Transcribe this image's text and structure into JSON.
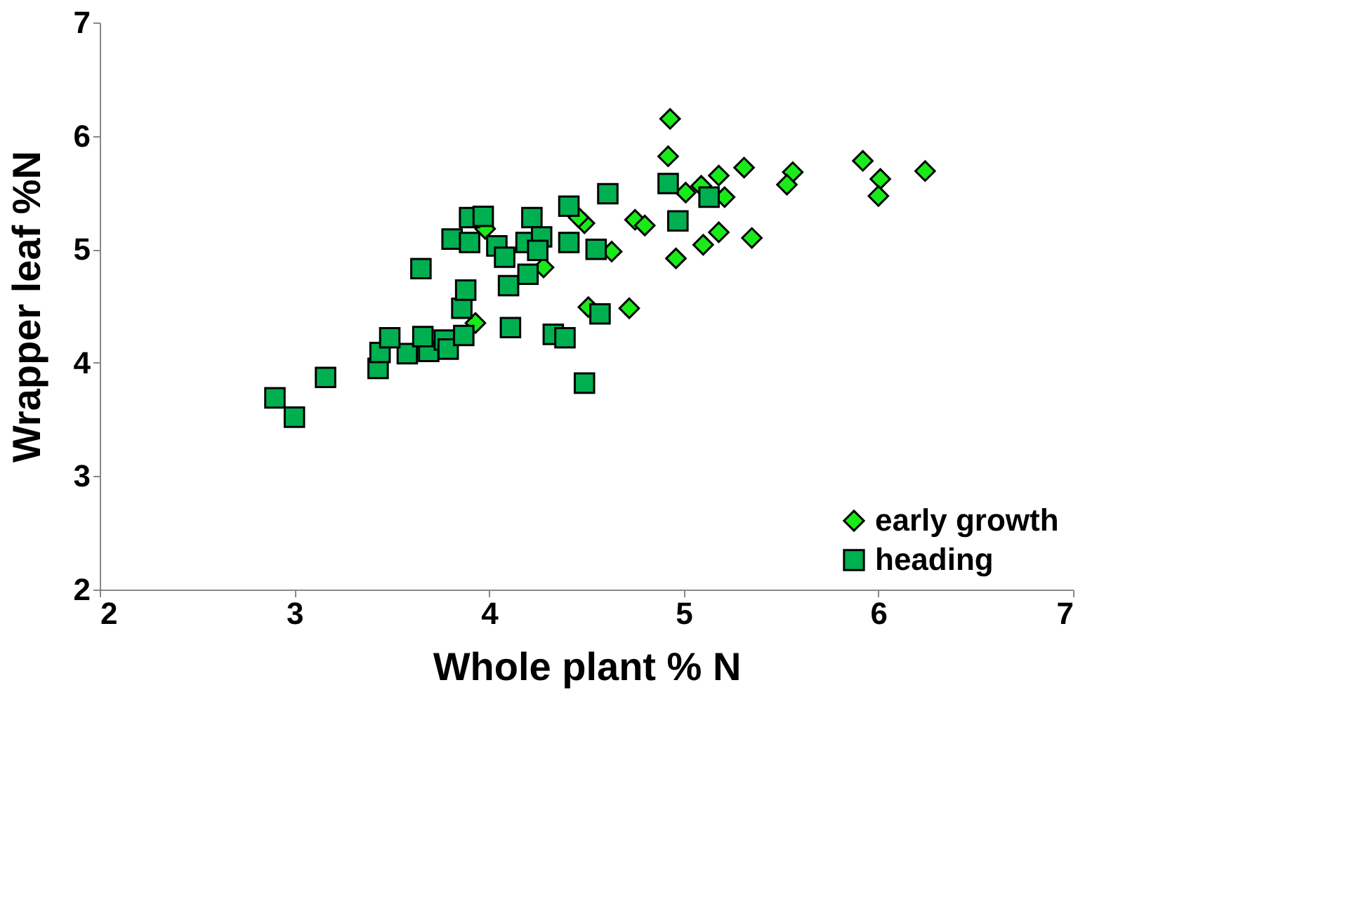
{
  "chart_data": {
    "type": "scatter",
    "xlabel": "Whole plant % N",
    "ylabel": "Wrapper leaf %N",
    "xlim": [
      2,
      7
    ],
    "ylim": [
      2,
      7
    ],
    "xticks": [
      2,
      3,
      4,
      5,
      6,
      7
    ],
    "yticks": [
      2,
      3,
      4,
      5,
      6,
      7
    ],
    "grid": false,
    "legend": "bottom right",
    "series": [
      {
        "name": "early growth",
        "color": "#1aea1a",
        "marker": "diamond",
        "x": [
          4.93,
          4.92,
          5.01,
          5.09,
          5.18,
          5.21,
          5.31,
          5.56,
          5.53,
          5.92,
          6.01,
          6.0,
          6.24,
          4.96,
          5.1,
          5.18,
          5.35,
          4.75,
          4.8,
          4.49,
          4.63,
          4.51,
          4.72,
          4.46,
          3.93,
          4.28,
          3.98
        ],
        "values": [
          6.15,
          5.82,
          5.5,
          5.56,
          5.65,
          5.46,
          5.72,
          5.68,
          5.57,
          5.78,
          5.62,
          5.47,
          5.69,
          4.92,
          5.04,
          5.15,
          5.1,
          5.26,
          5.21,
          5.23,
          4.98,
          4.49,
          4.48,
          5.28,
          4.35,
          4.84,
          5.18
        ]
      },
      {
        "name": "heading",
        "color": "#00b050",
        "marker": "square",
        "x": [
          2.9,
          3.0,
          3.16,
          3.43,
          3.44,
          3.58,
          3.69,
          3.49,
          3.66,
          3.77,
          3.79,
          3.87,
          3.86,
          3.88,
          3.65,
          4.11,
          4.33,
          4.39,
          4.49,
          4.1,
          4.2,
          4.57,
          3.9,
          3.97,
          3.81,
          3.9,
          4.04,
          4.08,
          4.19,
          4.22,
          4.27,
          4.25,
          4.41,
          4.41,
          4.55,
          4.61,
          4.92,
          4.97,
          5.13
        ],
        "values": [
          3.69,
          3.52,
          3.87,
          3.95,
          4.09,
          4.08,
          4.1,
          4.22,
          4.23,
          4.2,
          4.12,
          4.24,
          4.48,
          4.64,
          4.83,
          4.31,
          4.25,
          4.22,
          3.82,
          4.68,
          4.78,
          4.43,
          5.28,
          5.29,
          5.09,
          5.06,
          5.03,
          4.93,
          5.06,
          5.28,
          5.11,
          4.99,
          5.38,
          5.06,
          5.0,
          5.49,
          5.58,
          5.25,
          5.46
        ]
      }
    ]
  }
}
